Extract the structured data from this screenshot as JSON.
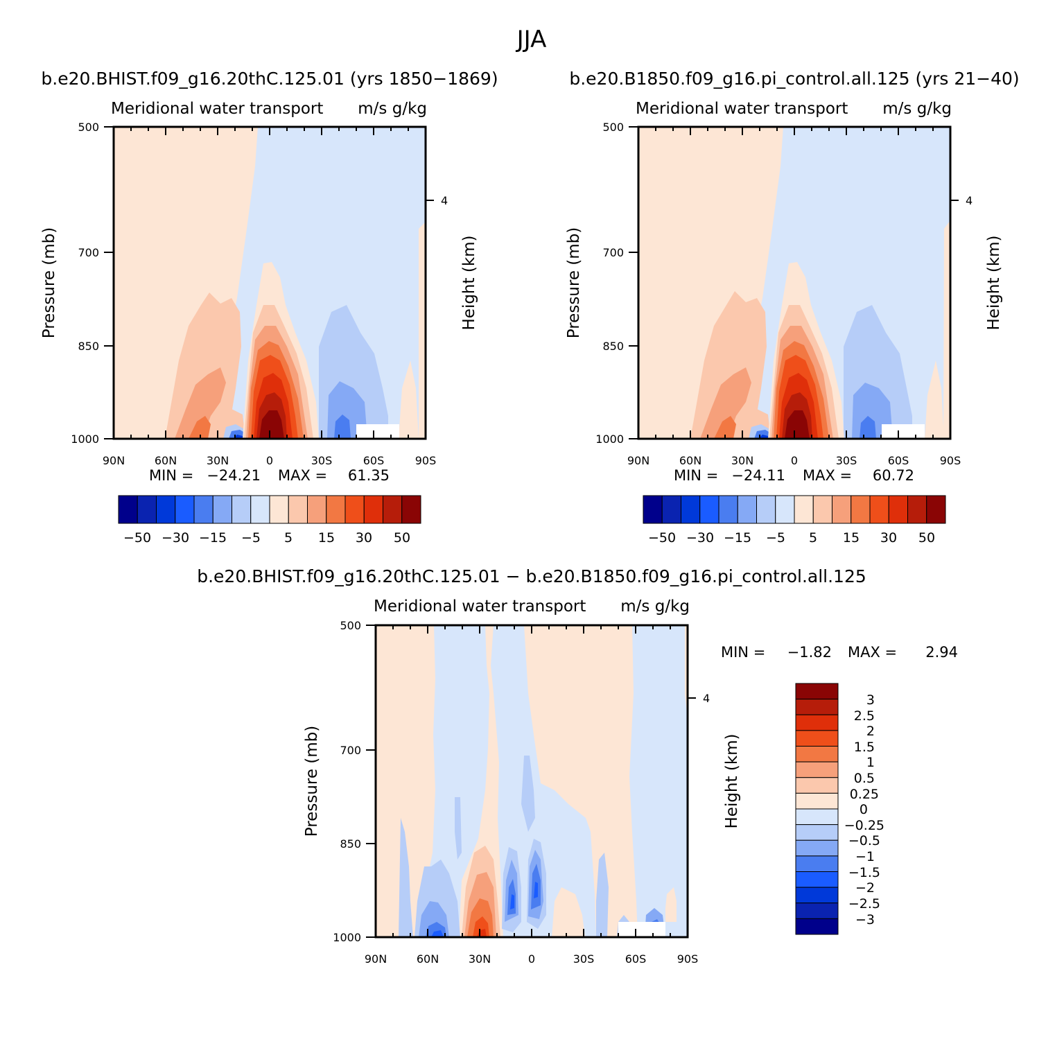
{
  "figure_title": "JJA",
  "diff_title": "b.e20.BHIST.f09_g16.20thC.125.01 − b.e20.B1850.f09_g16.pi_control.all.125",
  "chart_data": [
    {
      "type": "heatmap",
      "run_title": "b.e20.BHIST.f09_g16.20thC.125.01 (yrs 1850−1869)",
      "variable": "Meridional water transport",
      "units": "m/s g/kg",
      "ylabel": "Pressure (mb)",
      "y2label": "Height (km)",
      "x_ticks": [
        "90N",
        "60N",
        "30N",
        "0",
        "30S",
        "60S",
        "90S"
      ],
      "y_ticks": [
        "500",
        "700",
        "850",
        "1000"
      ],
      "y2_ticks": [
        "4"
      ],
      "xlim": [
        90,
        -90
      ],
      "ylim": [
        1000,
        500
      ],
      "min_label": "MIN =",
      "min_value": "−24.21",
      "max_label": "MAX =",
      "max_value": "61.35",
      "levels": [
        -50,
        -40,
        -30,
        -20,
        -15,
        -10,
        -5,
        0,
        5,
        10,
        15,
        20,
        30,
        40,
        50
      ],
      "colorbar_labels": [
        "−50",
        "−30",
        "−15",
        "−5",
        "5",
        "15",
        "30",
        "50"
      ],
      "colors": [
        "#00008b",
        "#0a23b0",
        "#0039d9",
        "#1a5cff",
        "#4a7df0",
        "#85a9f5",
        "#b6cdf8",
        "#d7e6fb",
        "#fde6d5",
        "#fbc8ad",
        "#f6a07b",
        "#f27843",
        "#ef4f1a",
        "#df2f0a",
        "#b61d0a",
        "#8a0505"
      ]
    },
    {
      "type": "heatmap",
      "run_title": "b.e20.B1850.f09_g16.pi_control.all.125 (yrs 21−40)",
      "variable": "Meridional water transport",
      "units": "m/s g/kg",
      "ylabel": "Pressure (mb)",
      "y2label": "Height (km)",
      "x_ticks": [
        "90N",
        "60N",
        "30N",
        "0",
        "30S",
        "60S",
        "90S"
      ],
      "y_ticks": [
        "500",
        "700",
        "850",
        "1000"
      ],
      "y2_ticks": [
        "4"
      ],
      "xlim": [
        90,
        -90
      ],
      "ylim": [
        1000,
        500
      ],
      "min_label": "MIN =",
      "min_value": "−24.11",
      "max_label": "MAX =",
      "max_value": "60.72",
      "levels": [
        -50,
        -40,
        -30,
        -20,
        -15,
        -10,
        -5,
        0,
        5,
        10,
        15,
        20,
        30,
        40,
        50
      ],
      "colorbar_labels": [
        "−50",
        "−30",
        "−15",
        "−5",
        "5",
        "15",
        "30",
        "50"
      ],
      "colors": [
        "#00008b",
        "#0a23b0",
        "#0039d9",
        "#1a5cff",
        "#4a7df0",
        "#85a9f5",
        "#b6cdf8",
        "#d7e6fb",
        "#fde6d5",
        "#fbc8ad",
        "#f6a07b",
        "#f27843",
        "#ef4f1a",
        "#df2f0a",
        "#b61d0a",
        "#8a0505"
      ]
    },
    {
      "type": "heatmap",
      "variable": "Meridional water transport",
      "units": "m/s g/kg",
      "ylabel": "Pressure (mb)",
      "y2label": "Height (km)",
      "x_ticks": [
        "90N",
        "60N",
        "30N",
        "0",
        "30S",
        "60S",
        "90S"
      ],
      "y_ticks": [
        "500",
        "700",
        "850",
        "1000"
      ],
      "y2_ticks": [
        "4"
      ],
      "xlim": [
        90,
        -90
      ],
      "ylim": [
        1000,
        500
      ],
      "min_label": "MIN =",
      "min_value": "−1.82",
      "max_label": "MAX =",
      "max_value": "2.94",
      "levels": [
        -3,
        -2.5,
        -2,
        -1.5,
        -1,
        -0.5,
        -0.25,
        0,
        0.25,
        0.5,
        1,
        1.5,
        2,
        2.5,
        3
      ],
      "colorbar_labels": [
        "3",
        "2.5",
        "2",
        "1.5",
        "1",
        "0.5",
        "0.25",
        "0",
        "−0.25",
        "−0.5",
        "−1",
        "−1.5",
        "−2",
        "−2.5",
        "−3"
      ],
      "colors": [
        "#00008b",
        "#0a23b0",
        "#0039d9",
        "#1a5cff",
        "#4a7df0",
        "#85a9f5",
        "#b6cdf8",
        "#d7e6fb",
        "#fde6d5",
        "#fbc8ad",
        "#f6a07b",
        "#f27843",
        "#ef4f1a",
        "#df2f0a",
        "#b61d0a",
        "#8a0505"
      ]
    }
  ]
}
